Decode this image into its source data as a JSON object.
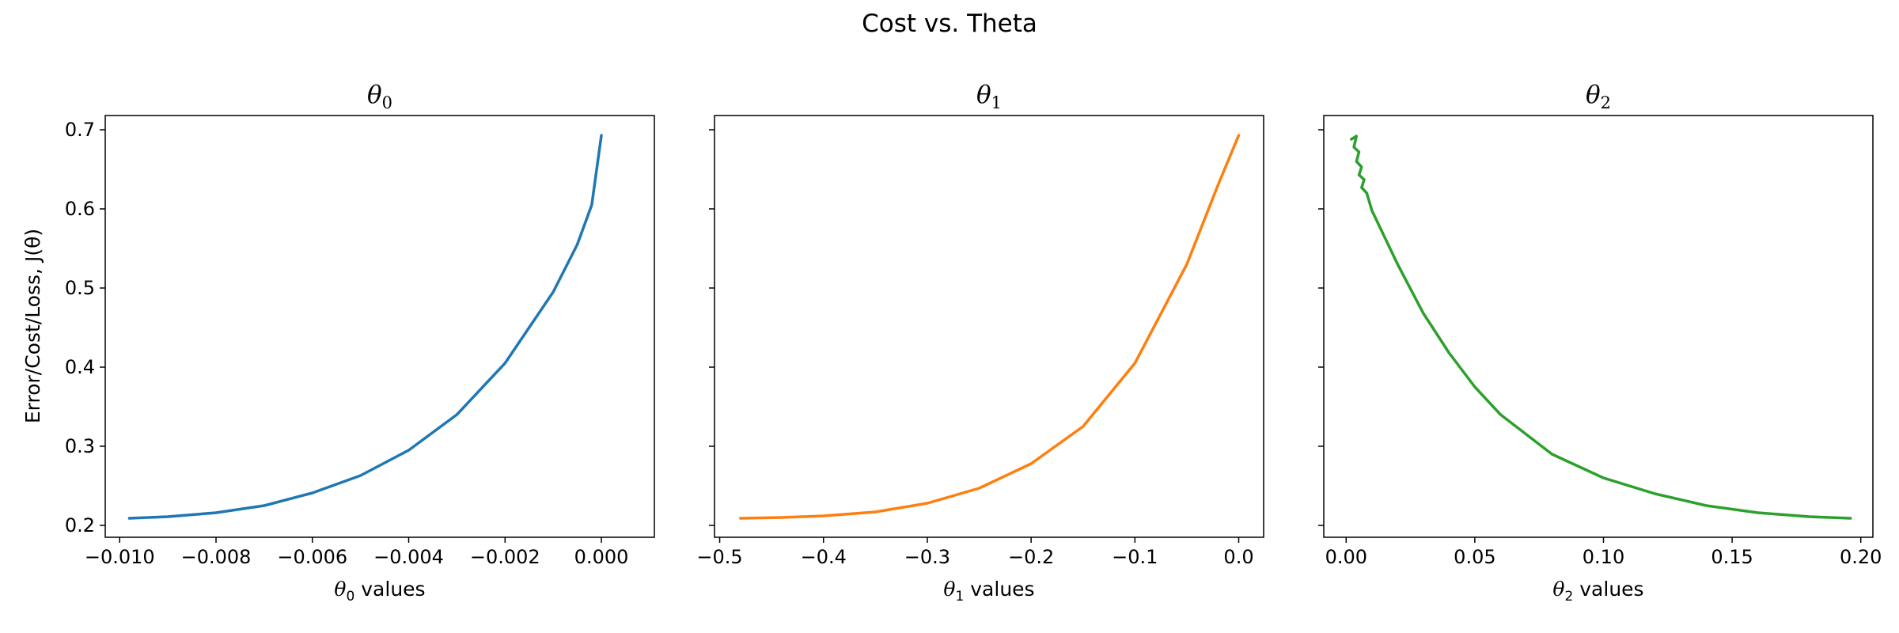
{
  "title": "Cost vs. Theta",
  "ylabel": "Error/Cost/Loss, J(θ)",
  "chart_data": [
    {
      "type": "line",
      "title_symbol": "θ",
      "title_subscript": "0",
      "xlabel_symbol": "θ",
      "xlabel_subscript": "0",
      "xlabel_suffix": " values",
      "color": "#1f77b4",
      "xlim": [
        -0.0103,
        0.0011
      ],
      "ylim": [
        0.185,
        0.718
      ],
      "xticks": [
        -0.01,
        -0.008,
        -0.006,
        -0.004,
        -0.002,
        0.0
      ],
      "xtick_labels": [
        "−0.010",
        "−0.008",
        "−0.006",
        "−0.004",
        "−0.002",
        "0.000"
      ],
      "yticks": [
        0.2,
        0.3,
        0.4,
        0.5,
        0.6,
        0.7
      ],
      "ytick_labels": [
        "0.2",
        "0.3",
        "0.4",
        "0.5",
        "0.6",
        "0.7"
      ],
      "x": [
        -0.0098,
        -0.009,
        -0.008,
        -0.007,
        -0.006,
        -0.005,
        -0.004,
        -0.003,
        -0.002,
        -0.001,
        -0.0005,
        -0.0002,
        0.0
      ],
      "y": [
        0.209,
        0.211,
        0.216,
        0.225,
        0.241,
        0.263,
        0.295,
        0.34,
        0.405,
        0.495,
        0.555,
        0.605,
        0.693
      ]
    },
    {
      "type": "line",
      "title_symbol": "θ",
      "title_subscript": "1",
      "xlabel_symbol": "θ",
      "xlabel_subscript": "1",
      "xlabel_suffix": " values",
      "color": "#ff7f0e",
      "xlim": [
        -0.505,
        0.024
      ],
      "ylim": [
        0.185,
        0.718
      ],
      "xticks": [
        -0.5,
        -0.4,
        -0.3,
        -0.2,
        -0.1,
        0.0
      ],
      "xtick_labels": [
        "−0.5",
        "−0.4",
        "−0.3",
        "−0.2",
        "−0.1",
        "0.0"
      ],
      "yticks": [
        0.2,
        0.3,
        0.4,
        0.5,
        0.6,
        0.7
      ],
      "ytick_labels": [
        "",
        "",
        "",
        "",
        "",
        ""
      ],
      "x": [
        -0.48,
        -0.44,
        -0.4,
        -0.35,
        -0.3,
        -0.25,
        -0.2,
        -0.15,
        -0.1,
        -0.05,
        -0.02,
        0.0
      ],
      "y": [
        0.209,
        0.21,
        0.212,
        0.217,
        0.228,
        0.247,
        0.278,
        0.325,
        0.405,
        0.53,
        0.63,
        0.693
      ]
    },
    {
      "type": "line",
      "title_symbol": "θ",
      "title_subscript": "2",
      "xlabel_symbol": "θ",
      "xlabel_subscript": "2",
      "xlabel_suffix": " values",
      "color": "#2ca02c",
      "xlim": [
        -0.0087,
        0.2047
      ],
      "ylim": [
        0.185,
        0.718
      ],
      "xticks": [
        0.0,
        0.05,
        0.1,
        0.15,
        0.2
      ],
      "xtick_labels": [
        "0.00",
        "0.05",
        "0.10",
        "0.15",
        "0.20"
      ],
      "yticks": [
        0.2,
        0.3,
        0.4,
        0.5,
        0.6,
        0.7
      ],
      "ytick_labels": [
        "",
        "",
        "",
        "",
        "",
        ""
      ],
      "x": [
        0.002,
        0.004,
        0.003,
        0.005,
        0.004,
        0.006,
        0.005,
        0.007,
        0.006,
        0.008,
        0.01,
        0.02,
        0.03,
        0.04,
        0.05,
        0.06,
        0.08,
        0.1,
        0.12,
        0.14,
        0.16,
        0.18,
        0.196
      ],
      "y": [
        0.688,
        0.692,
        0.678,
        0.672,
        0.66,
        0.653,
        0.643,
        0.637,
        0.627,
        0.62,
        0.598,
        0.53,
        0.468,
        0.418,
        0.375,
        0.34,
        0.29,
        0.26,
        0.24,
        0.225,
        0.216,
        0.211,
        0.209
      ]
    }
  ]
}
